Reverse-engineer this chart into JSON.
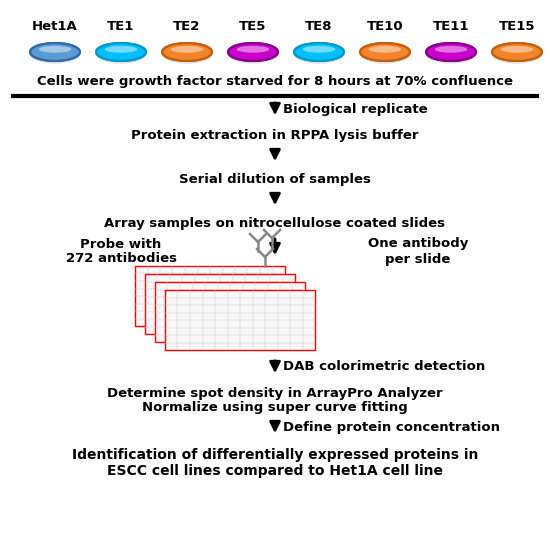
{
  "cell_lines": [
    "Het1A",
    "TE1",
    "TE2",
    "TE5",
    "TE8",
    "TE10",
    "TE11",
    "TE15"
  ],
  "dish_colors": [
    "#5B9BD5",
    "#00BFFF",
    "#F4832A",
    "#CC00CC",
    "#00BFFF",
    "#F4832A",
    "#CC00CC",
    "#F4832A"
  ],
  "dish_edge_colors": [
    "#2E6DA4",
    "#0099CC",
    "#C06010",
    "#880088",
    "#0099CC",
    "#C06010",
    "#880088",
    "#C06010"
  ],
  "step1_text": "Cells were growth factor starved for 8 hours at 70% confluence",
  "arrow1_text": "Biological replicate",
  "step2_text": "Protein extraction in RPPA lysis buffer",
  "step3_text": "Serial dilution of samples",
  "step4_text": "Array samples on nitrocellulose coated slides",
  "left_text1": "Probe with",
  "left_text2": "272 antibodies",
  "right_text1": "One antibody",
  "right_text2": "per slide",
  "arrow_dab": "DAB colorimetric detection",
  "step5_text1": "Determine spot density in ArrayPro Analyzer",
  "step5_text2": "Normalize using super curve fitting",
  "arrow_protein": "Define protein concentration",
  "step6_text1": "Identification of differentially expressed proteins in",
  "step6_text2": "ESCC cell lines compared to Het1A cell line",
  "bg_color": "#FFFFFF",
  "text_color": "#000000",
  "bold_fontsize": 9.5,
  "small_fontsize": 9,
  "fig_width": 5.5,
  "fig_height": 5.58,
  "dpi": 100
}
